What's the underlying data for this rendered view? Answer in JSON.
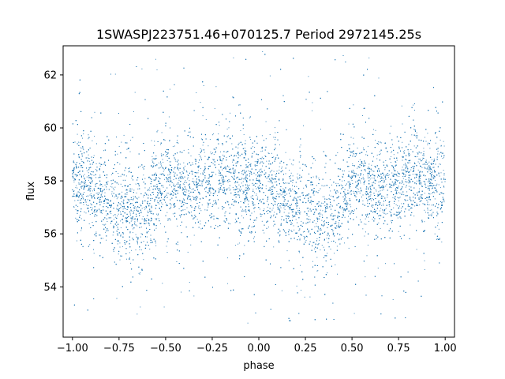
{
  "chart_data": {
    "type": "scatter",
    "title": "1SWASPJ223751.46+070125.7 Period 2972145.25s",
    "xlabel": "phase",
    "ylabel": "flux",
    "xlim": [
      -1.05,
      1.05
    ],
    "ylim": [
      52.1,
      63.1
    ],
    "xticks": [
      -1.0,
      -0.75,
      -0.5,
      -0.25,
      0.0,
      0.25,
      0.5,
      0.75,
      1.0
    ],
    "xtick_labels": [
      "−1.00",
      "−0.75",
      "−0.50",
      "−0.25",
      "0.00",
      "0.25",
      "0.50",
      "0.75",
      "1.00"
    ],
    "yticks": [
      54,
      56,
      58,
      60,
      62
    ],
    "ytick_labels": [
      "54",
      "56",
      "58",
      "60",
      "62"
    ],
    "grid": false,
    "marker_color": "#1f77b4",
    "series": [
      {
        "phase_range": [
          -1.0,
          1.0
        ],
        "approx_point_count": 12000,
        "median_flux_profile": {
          "phase": [
            -1.0,
            -0.9,
            -0.8,
            -0.75,
            -0.7,
            -0.65,
            -0.6,
            -0.55,
            -0.5,
            -0.4,
            -0.3,
            -0.25,
            -0.2,
            -0.15,
            -0.1,
            0.0,
            0.1,
            0.2,
            0.25,
            0.3,
            0.35,
            0.4,
            0.45,
            0.5,
            0.6,
            0.7,
            0.75,
            0.8,
            0.85,
            0.9,
            1.0
          ],
          "flux": [
            57.9,
            57.8,
            57.2,
            57.0,
            56.9,
            56.7,
            56.8,
            57.5,
            58.0,
            57.6,
            57.8,
            57.9,
            58.1,
            58.2,
            57.9,
            57.9,
            57.6,
            57.0,
            56.9,
            56.8,
            56.7,
            56.6,
            57.3,
            58.0,
            57.6,
            57.8,
            57.9,
            58.1,
            58.2,
            57.9,
            57.9
          ]
        },
        "typical_scatter_flux": 0.8,
        "outlier_flux_range": [
          52.6,
          62.9
        ]
      }
    ]
  }
}
